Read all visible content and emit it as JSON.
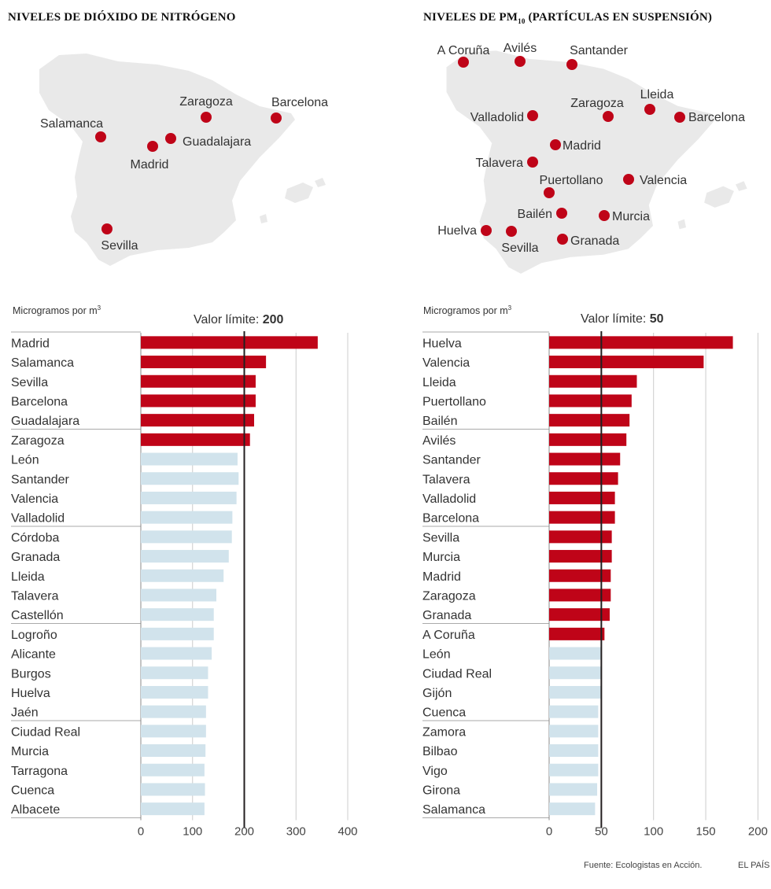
{
  "footer": {
    "source": "Fuente: Ecologistas en Acción.",
    "brand": "EL PAÍS"
  },
  "colors": {
    "over_limit": "#bf0418",
    "under_limit": "#d1e3ec",
    "map_fill": "#e9e9e9",
    "limit_line": "#231f20",
    "grid": "#cccccc"
  },
  "maps": [
    {
      "title_main": "NIVELES DE DIÓXIDO DE NITRÓGENO",
      "title_sub": "",
      "title_rest": "",
      "cities": [
        {
          "name": "Zaragoza",
          "label_pos": "above"
        },
        {
          "name": "Barcelona",
          "label_pos": "above"
        },
        {
          "name": "Salamanca",
          "label_pos": "above"
        },
        {
          "name": "Guadalajara",
          "label_pos": "right"
        },
        {
          "name": "Madrid",
          "label_pos": "below"
        },
        {
          "name": "Sevilla",
          "label_pos": "below"
        }
      ]
    },
    {
      "title_main": "NIVELES DE PM",
      "title_sub": "10",
      "title_rest": " (PARTÍCULAS EN SUSPENSIÓN)",
      "cities": [
        {
          "name": "A Coruña",
          "label_pos": "above"
        },
        {
          "name": "Avilés",
          "label_pos": "above"
        },
        {
          "name": "Santander",
          "label_pos": "above"
        },
        {
          "name": "Lleida",
          "label_pos": "above"
        },
        {
          "name": "Zaragoza",
          "label_pos": "above"
        },
        {
          "name": "Valladolid",
          "label_pos": "left"
        },
        {
          "name": "Barcelona",
          "label_pos": "right"
        },
        {
          "name": "Madrid",
          "label_pos": "right"
        },
        {
          "name": "Talavera",
          "label_pos": "left"
        },
        {
          "name": "Puertollano",
          "label_pos": "above"
        },
        {
          "name": "Valencia",
          "label_pos": "right"
        },
        {
          "name": "Bailén",
          "label_pos": "left"
        },
        {
          "name": "Murcia",
          "label_pos": "right"
        },
        {
          "name": "Huelva",
          "label_pos": "left"
        },
        {
          "name": "Sevilla",
          "label_pos": "below"
        },
        {
          "name": "Granada",
          "label_pos": "right"
        }
      ]
    }
  ],
  "chart_data": [
    {
      "type": "bar",
      "orientation": "horizontal",
      "title": "NIVELES DE DIÓXIDO DE NITRÓGENO",
      "unit_label": "Microgramos por m",
      "unit_sup": "3",
      "limit_text": "Valor límite: ",
      "limit_value_text": "200",
      "limit": 200,
      "xlim": [
        0,
        400
      ],
      "xticks": [
        0,
        100,
        200,
        300,
        400
      ],
      "xtick_labels": [
        "0",
        "100",
        "200",
        "300",
        "400"
      ],
      "grid": true,
      "categories": [
        "Madrid",
        "Salamanca",
        "Sevilla",
        "Barcelona",
        "Guadalajara",
        "Zaragoza",
        "León",
        "Santander",
        "Valencia",
        "Valladolid",
        "Córdoba",
        "Granada",
        "Lleida",
        "Talavera",
        "Castellón",
        "Logroño",
        "Alicante",
        "Burgos",
        "Huelva",
        "Jaén",
        "Ciudad Real",
        "Murcia",
        "Tarragona",
        "Cuenca",
        "Albacete"
      ],
      "values": [
        342,
        242,
        222,
        222,
        219,
        211,
        187,
        189,
        185,
        177,
        176,
        170,
        160,
        146,
        141,
        141,
        137,
        130,
        130,
        126,
        126,
        125,
        123,
        124,
        123
      ]
    },
    {
      "type": "bar",
      "orientation": "horizontal",
      "title": "NIVELES DE PM10 (PARTÍCULAS EN SUSPENSIÓN)",
      "unit_label": "Microgramos por m",
      "unit_sup": "3",
      "limit_text": "Valor límite: ",
      "limit_value_text": "50",
      "limit": 50,
      "xlim": [
        0,
        200
      ],
      "xticks": [
        0,
        50,
        100,
        150,
        200
      ],
      "xtick_labels": [
        "0",
        "50",
        "100",
        "150",
        "200"
      ],
      "grid": true,
      "categories": [
        "Huelva",
        "Valencia",
        "Lleida",
        "Puertollano",
        "Bailén",
        "Avilés",
        "Santander",
        "Talavera",
        "Valladolid",
        "Barcelona",
        "Sevilla",
        "Murcia",
        "Madrid",
        "Zaragoza",
        "Granada",
        "A Coruña",
        "León",
        "Ciudad Real",
        "Gijón",
        "Cuenca",
        "Zamora",
        "Bilbao",
        "Vigo",
        "Girona",
        "Salamanca"
      ],
      "values": [
        176,
        148,
        84,
        79,
        77,
        74,
        68,
        66,
        63,
        63,
        60,
        60,
        59,
        59,
        58,
        53,
        50,
        50,
        50,
        47,
        47,
        47,
        47,
        46,
        44
      ]
    }
  ]
}
